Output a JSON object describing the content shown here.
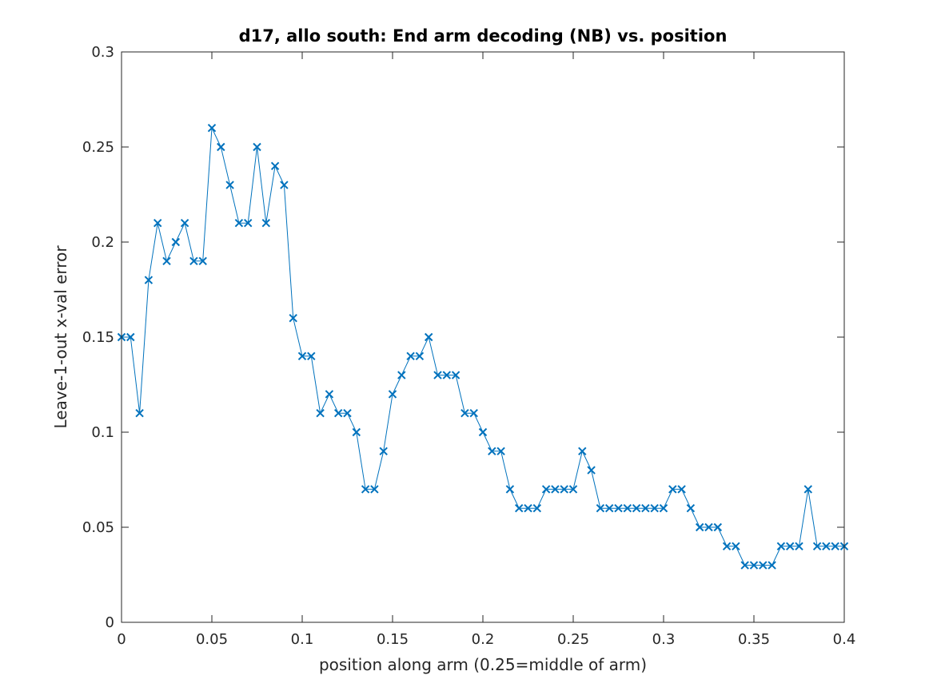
{
  "chart_data": {
    "type": "line",
    "title": "d17, allo south: End arm decoding (NB) vs. position",
    "xlabel": "position along arm (0.25=middle of arm)",
    "ylabel": "Leave-1-out x-val error",
    "xlim": [
      0,
      0.4
    ],
    "ylim": [
      0,
      0.3
    ],
    "xticks": [
      0,
      0.05,
      0.1,
      0.15,
      0.2,
      0.25,
      0.3,
      0.35,
      0.4
    ],
    "xtick_labels": [
      "0",
      "0.05",
      "0.1",
      "0.15",
      "0.2",
      "0.25",
      "0.3",
      "0.35",
      "0.4"
    ],
    "yticks": [
      0,
      0.05,
      0.1,
      0.15,
      0.2,
      0.25,
      0.3
    ],
    "ytick_labels": [
      "0",
      "0.05",
      "0.1",
      "0.15",
      "0.2",
      "0.25",
      "0.3"
    ],
    "grid": false,
    "marker": "x",
    "color": "#0072BD",
    "x": [
      0,
      0.005,
      0.01,
      0.015,
      0.02,
      0.025,
      0.03,
      0.035,
      0.04,
      0.045,
      0.05,
      0.055,
      0.06,
      0.065,
      0.07,
      0.075,
      0.08,
      0.085,
      0.09,
      0.095,
      0.1,
      0.105,
      0.11,
      0.115,
      0.12,
      0.125,
      0.13,
      0.135,
      0.14,
      0.145,
      0.15,
      0.155,
      0.16,
      0.165,
      0.17,
      0.175,
      0.18,
      0.185,
      0.19,
      0.195,
      0.2,
      0.205,
      0.21,
      0.215,
      0.22,
      0.225,
      0.23,
      0.235,
      0.24,
      0.245,
      0.25,
      0.255,
      0.26,
      0.265,
      0.27,
      0.275,
      0.28,
      0.285,
      0.29,
      0.295,
      0.3,
      0.305,
      0.31,
      0.315,
      0.32,
      0.325,
      0.33,
      0.335,
      0.34,
      0.345,
      0.35,
      0.355,
      0.36,
      0.365,
      0.37,
      0.375,
      0.38,
      0.385,
      0.39,
      0.395,
      0.4
    ],
    "y": [
      0.15,
      0.15,
      0.11,
      0.18,
      0.21,
      0.19,
      0.2,
      0.21,
      0.19,
      0.19,
      0.26,
      0.25,
      0.23,
      0.21,
      0.21,
      0.25,
      0.21,
      0.24,
      0.23,
      0.16,
      0.14,
      0.14,
      0.11,
      0.12,
      0.11,
      0.11,
      0.1,
      0.07,
      0.07,
      0.09,
      0.12,
      0.13,
      0.14,
      0.14,
      0.15,
      0.13,
      0.13,
      0.13,
      0.11,
      0.11,
      0.1,
      0.09,
      0.09,
      0.07,
      0.06,
      0.06,
      0.06,
      0.07,
      0.07,
      0.07,
      0.07,
      0.09,
      0.08,
      0.06,
      0.06,
      0.06,
      0.06,
      0.06,
      0.06,
      0.06,
      0.06,
      0.07,
      0.07,
      0.06,
      0.05,
      0.05,
      0.05,
      0.04,
      0.04,
      0.03,
      0.03,
      0.03,
      0.03,
      0.04,
      0.04,
      0.04,
      0.07,
      0.04,
      0.04,
      0.04,
      0.04
    ]
  }
}
